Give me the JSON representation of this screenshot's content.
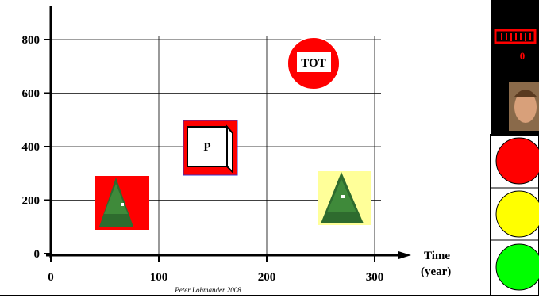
{
  "x_axis": {
    "ticks": [
      0,
      100,
      200,
      300
    ],
    "label_lines": [
      "Time",
      "(year)"
    ]
  },
  "y_axis": {
    "ticks": [
      0,
      200,
      400,
      600,
      800
    ]
  },
  "credit": "Peter Lohmander 2008",
  "items": [
    {
      "label": "P"
    },
    {
      "label": "TOT"
    }
  ],
  "panel": {
    "counter": "0"
  }
}
